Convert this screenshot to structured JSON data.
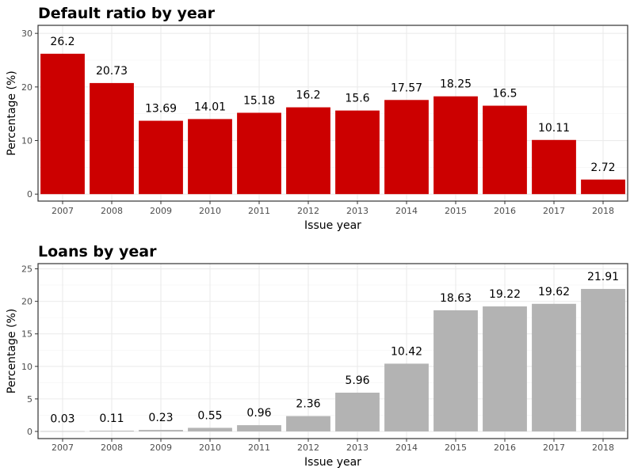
{
  "chart_data": [
    {
      "type": "bar",
      "title": "Default ratio by year",
      "xlabel": "Issue year",
      "ylabel": "Percentage (%)",
      "categories": [
        "2007",
        "2008",
        "2009",
        "2010",
        "2011",
        "2012",
        "2013",
        "2014",
        "2015",
        "2016",
        "2017",
        "2018"
      ],
      "values": [
        26.2,
        20.73,
        13.69,
        14.01,
        15.18,
        16.2,
        15.6,
        17.57,
        18.25,
        16.5,
        10.11,
        2.72
      ],
      "value_labels": [
        "26.2",
        "20.73",
        "13.69",
        "14.01",
        "15.18",
        "16.2",
        "15.6",
        "17.57",
        "18.25",
        "16.5",
        "10.11",
        "2.72"
      ],
      "ylim": [
        -1.3,
        31.5
      ],
      "yticks": [
        0,
        10,
        20,
        30
      ],
      "ytick_labels": [
        "0",
        "10",
        "20",
        "30"
      ],
      "bar_color": "#cc0000",
      "grid": true
    },
    {
      "type": "bar",
      "title": "Loans by year",
      "xlabel": "Issue year",
      "ylabel": "Percentage (%)",
      "categories": [
        "2007",
        "2008",
        "2009",
        "2010",
        "2011",
        "2012",
        "2013",
        "2014",
        "2015",
        "2016",
        "2017",
        "2018"
      ],
      "values": [
        0.03,
        0.11,
        0.23,
        0.55,
        0.96,
        2.36,
        5.96,
        10.42,
        18.63,
        19.22,
        19.62,
        21.91
      ],
      "value_labels": [
        "0.03",
        "0.11",
        "0.23",
        "0.55",
        "0.96",
        "2.36",
        "5.96",
        "10.42",
        "18.63",
        "19.22",
        "19.62",
        "21.91"
      ],
      "ylim": [
        -1.1,
        25.8
      ],
      "yticks": [
        0,
        5,
        10,
        15,
        20,
        25
      ],
      "ytick_labels": [
        "0",
        "5",
        "10",
        "15",
        "20",
        "25"
      ],
      "bar_color": "#b3b3b3",
      "grid": true
    }
  ]
}
